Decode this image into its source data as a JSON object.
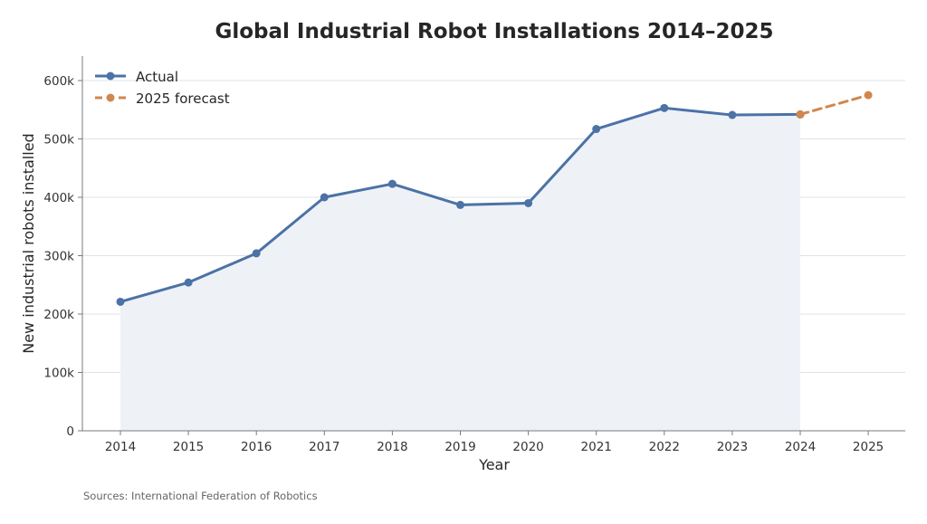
{
  "colors": {
    "actual": "#4c72a6",
    "forecast": "#d0874d",
    "area_fill": "#eef2f7",
    "grid": "#dde3ea",
    "axis": "#7a7a7a"
  },
  "footer": {
    "source": "Sources: International Federation of Robotics"
  },
  "chart_data": {
    "type": "line",
    "title": "Global Industrial Robot Installations 2014–2025",
    "xlabel": "Year",
    "ylabel": "New industrial robots installed",
    "categories": [
      "2014",
      "2015",
      "2016",
      "2017",
      "2018",
      "2019",
      "2020",
      "2021",
      "2022",
      "2023",
      "2024",
      "2025"
    ],
    "ylim": [
      0,
      640000
    ],
    "yticks": [
      0,
      100000,
      200000,
      300000,
      400000,
      500000,
      600000
    ],
    "ytick_labels": [
      "0",
      "100k",
      "200k",
      "300k",
      "400k",
      "500k",
      "600k"
    ],
    "grid": "horizontal",
    "legend_position": "top-left",
    "series": [
      {
        "name": "Actual",
        "style": "solid",
        "area_fill": true,
        "x": [
          "2014",
          "2015",
          "2016",
          "2017",
          "2018",
          "2019",
          "2020",
          "2021",
          "2022",
          "2023",
          "2024"
        ],
        "values": [
          221000,
          254000,
          304000,
          400000,
          423000,
          387000,
          390000,
          517000,
          553000,
          541000,
          542000
        ]
      },
      {
        "name": "2025 forecast",
        "style": "dashed",
        "area_fill": false,
        "x": [
          "2024",
          "2025"
        ],
        "values": [
          542000,
          575000
        ]
      }
    ]
  }
}
